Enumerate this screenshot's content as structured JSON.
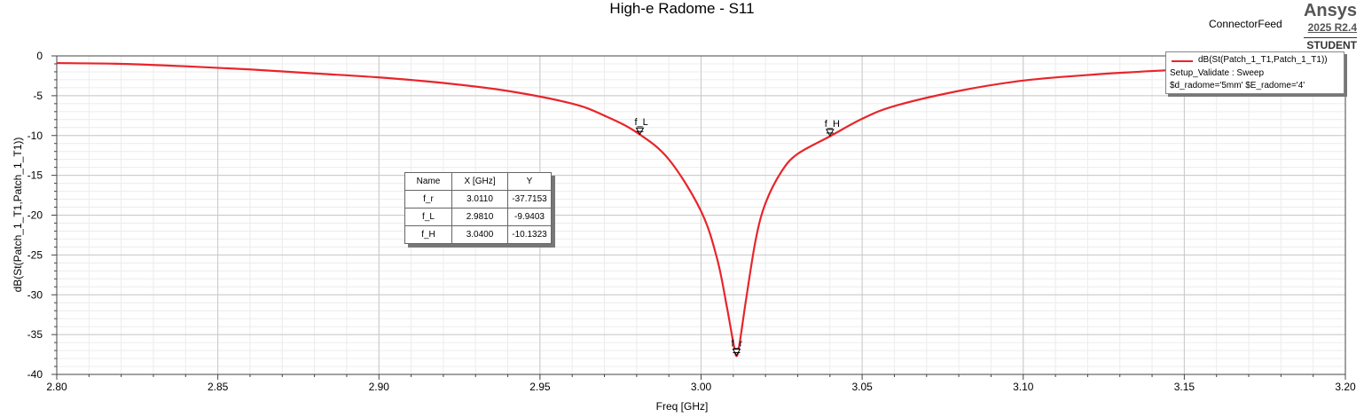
{
  "chart_data": {
    "type": "line",
    "title": "High-e Radome - S11",
    "xlabel": "Freq [GHz]",
    "ylabel": "dB(St(Patch_1_T1,Patch_1_T1))",
    "xlim": [
      2.8,
      3.2
    ],
    "ylim": [
      -40,
      0
    ],
    "xticks": [
      "2.80",
      "2.85",
      "2.90",
      "2.95",
      "3.00",
      "3.05",
      "3.10",
      "3.15",
      "3.20"
    ],
    "yticks": [
      "0",
      "-5",
      "-10",
      "-15",
      "-20",
      "-25",
      "-30",
      "-35",
      "-40"
    ],
    "grid": true,
    "legend_position": "top-right",
    "series": [
      {
        "name": "dB(St(Patch_1_T1,Patch_1_T1))",
        "color": "#e8252b",
        "x": [
          2.8,
          2.82,
          2.84,
          2.86,
          2.88,
          2.9,
          2.92,
          2.94,
          2.96,
          2.97,
          2.98,
          2.99,
          3.0,
          3.005,
          3.008,
          3.01,
          3.011,
          3.012,
          3.014,
          3.017,
          3.02,
          3.025,
          3.03,
          3.04,
          3.05,
          3.06,
          3.08,
          3.1,
          3.12,
          3.14,
          3.16,
          3.18,
          3.195
        ],
        "y": [
          -0.9,
          -1.0,
          -1.3,
          -1.7,
          -2.2,
          -2.7,
          -3.4,
          -4.4,
          -6.0,
          -7.5,
          -9.6,
          -13.0,
          -19.5,
          -25.5,
          -31.5,
          -36.0,
          -37.7,
          -36.0,
          -30.5,
          -23.0,
          -18.5,
          -14.5,
          -12.3,
          -10.1,
          -7.9,
          -6.3,
          -4.4,
          -3.1,
          -2.4,
          -1.9,
          -1.5,
          -1.2,
          -1.1
        ]
      }
    ],
    "markers": [
      {
        "name": "f_r",
        "x": 3.011,
        "y": -37.7153
      },
      {
        "name": "f_L",
        "x": 2.981,
        "y": -9.9403
      },
      {
        "name": "f_H",
        "x": 3.04,
        "y": -10.1323
      }
    ]
  },
  "brand": {
    "name": "Ansys",
    "version": "2025 R2.4",
    "edition": "STUDENT"
  },
  "feed_label": "ConnectorFeed",
  "legend": {
    "series_label": "dB(St(Patch_1_T1,Patch_1_T1))",
    "setup": "Setup_Validate : Sweep",
    "params": "$d_radome='5mm' $E_radome='4'"
  },
  "marker_table": {
    "headers": [
      "Name",
      "X [GHz]",
      "Y"
    ],
    "rows": [
      [
        "f_r",
        "3.0110",
        "-37.7153"
      ],
      [
        "f_L",
        "2.9810",
        "-9.9403"
      ],
      [
        "f_H",
        "3.0400",
        "-10.1323"
      ]
    ]
  }
}
